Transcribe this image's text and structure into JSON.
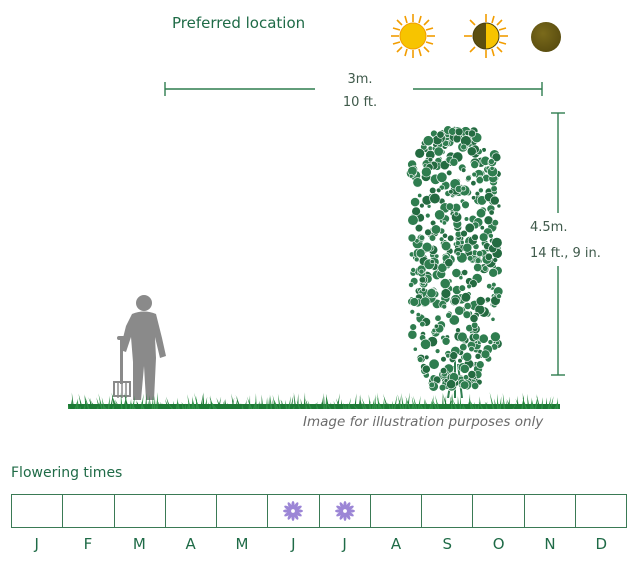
{
  "location": {
    "title": "Preferred location",
    "icons": [
      "full-sun-icon",
      "partial-shade-icon",
      "full-shade-icon"
    ],
    "colors": {
      "sun": "#f5b800",
      "shade": "#5c4f10"
    }
  },
  "dimensions": {
    "width_metric": "3m.",
    "width_imperial": "10 ft.",
    "height_metric": "4.5m.",
    "height_imperial": "14 ft., 9 in."
  },
  "illustration": {
    "caption": "Image for illustration purposes only",
    "colors": {
      "foliage": "#2f7d4f",
      "grass": "#1d7a35",
      "person": "#8a8a8a"
    }
  },
  "flowering": {
    "title": "Flowering times",
    "months": [
      "J",
      "F",
      "M",
      "A",
      "M",
      "J",
      "J",
      "A",
      "S",
      "O",
      "N",
      "D"
    ],
    "flowering_months": [
      false,
      false,
      false,
      false,
      false,
      true,
      true,
      false,
      false,
      false,
      false,
      false
    ],
    "flower_icon": "flower-icon",
    "flower_color": "#9c86d6"
  }
}
